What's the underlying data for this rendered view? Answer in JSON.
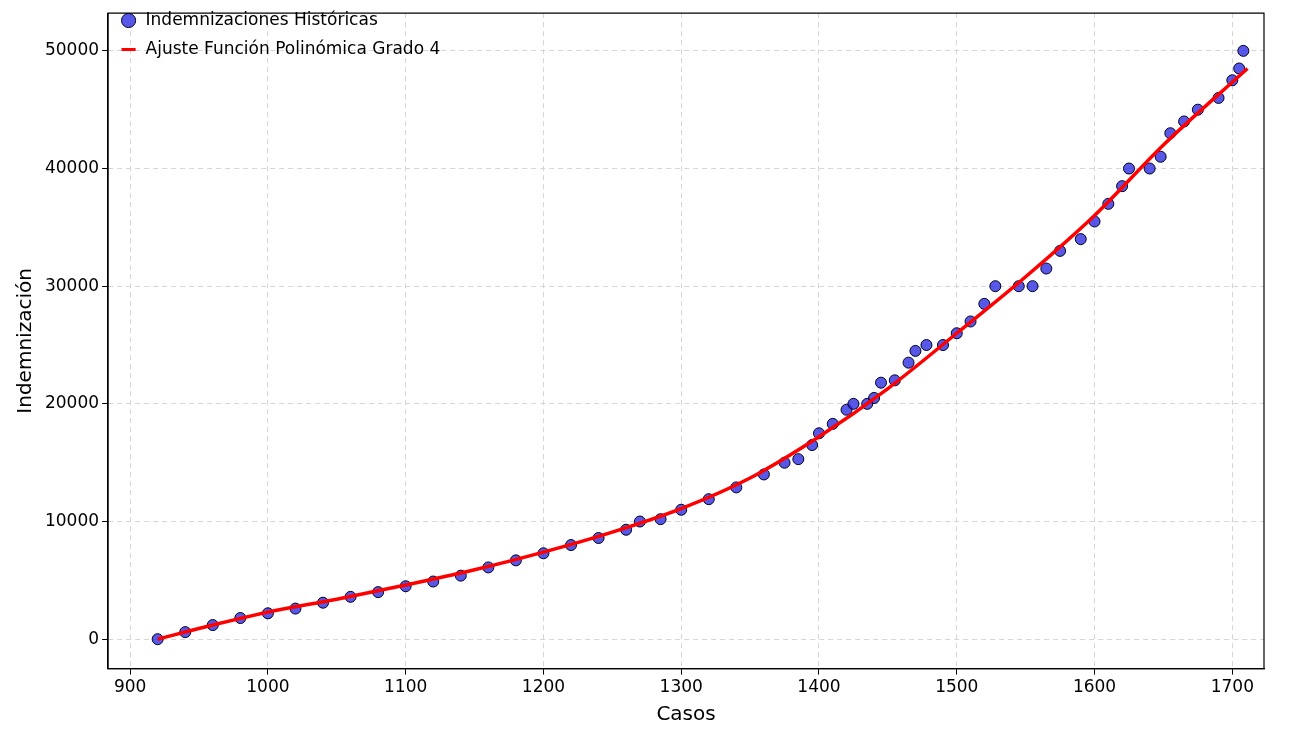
{
  "chart_data": {
    "type": "scatter",
    "xlabel": "Casos",
    "ylabel": "Indemnización",
    "xlim": [
      884,
      1723
    ],
    "xticks": [
      900,
      1000,
      1100,
      1200,
      1300,
      1400,
      1500,
      1600,
      1700
    ],
    "ylim": [
      -2500,
      53200
    ],
    "yticks": [
      0,
      10000,
      20000,
      30000,
      40000,
      50000
    ],
    "grid": true,
    "legend": "top left",
    "marker": "circle",
    "series": [
      {
        "name": "Indemnizaciones Históricas",
        "color": "#2020e0",
        "x": [
          920,
          940,
          960,
          980,
          1000,
          1020,
          1040,
          1060,
          1080,
          1100,
          1120,
          1140,
          1160,
          1180,
          1200,
          1220,
          1240,
          1260,
          1270,
          1285,
          1300,
          1320,
          1340,
          1360,
          1375,
          1385,
          1395,
          1400,
          1410,
          1420,
          1425,
          1435,
          1440,
          1445,
          1455,
          1465,
          1470,
          1478,
          1490,
          1500,
          1510,
          1520,
          1528,
          1545,
          1555,
          1565,
          1575,
          1590,
          1600,
          1610,
          1620,
          1625,
          1640,
          1648,
          1655,
          1665,
          1675,
          1690,
          1700,
          1705,
          1708
        ],
        "values": [
          0,
          600,
          1200,
          1800,
          2200,
          2600,
          3100,
          3600,
          4000,
          4500,
          4900,
          5400,
          6100,
          6700,
          7300,
          8000,
          8600,
          9300,
          10000,
          10200,
          11000,
          11900,
          12900,
          14000,
          15000,
          15300,
          16500,
          17500,
          18300,
          19500,
          20000,
          20000,
          20500,
          21800,
          22000,
          23500,
          24500,
          25000,
          25000,
          26000,
          27000,
          28500,
          30000,
          30000,
          30000,
          31500,
          33000,
          34000,
          35500,
          37000,
          38500,
          40000,
          40000,
          41000,
          43000,
          44000,
          45000,
          46000,
          47500,
          48500,
          50000
        ]
      },
      {
        "name": "Ajuste Función Polinómica Grado 4",
        "color": "#ff0000",
        "type": "line",
        "line_style": "solid",
        "marker": "none",
        "x": [
          920,
          960,
          1000,
          1050,
          1100,
          1150,
          1200,
          1250,
          1300,
          1350,
          1400,
          1450,
          1500,
          1550,
          1600,
          1650,
          1711
        ],
        "values": [
          0,
          1200,
          2300,
          3400,
          4600,
          5900,
          7400,
          9100,
          11100,
          13700,
          17200,
          21300,
          26000,
          30800,
          36000,
          42000,
          48500
        ]
      }
    ]
  }
}
